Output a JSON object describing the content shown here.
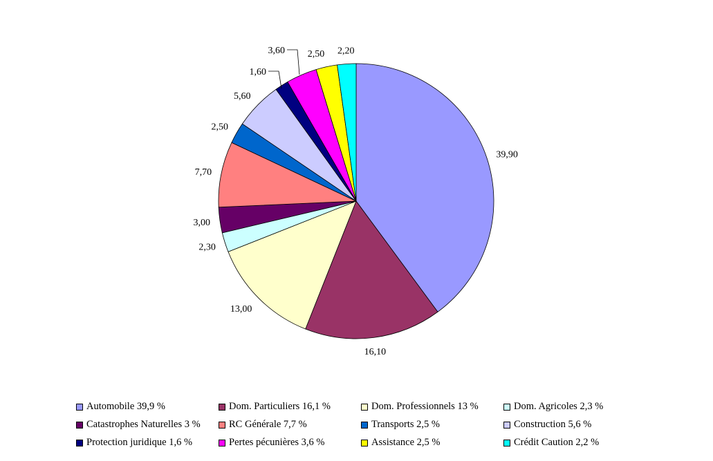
{
  "chart_data": {
    "type": "pie",
    "start_angle": "12 o'clock, clockwise",
    "slices": [
      {
        "label": "Automobile 39,9 %",
        "value": 39.9,
        "data_label": "39,90",
        "color": "#9999FF"
      },
      {
        "label": "Dom. Particuliers 16,1 %",
        "value": 16.1,
        "data_label": "16,10",
        "color": "#993366"
      },
      {
        "label": "Dom. Professionnels 13 %",
        "value": 13.0,
        "data_label": "13,00",
        "color": "#FFFFCC"
      },
      {
        "label": "Dom. Agricoles 2,3 %",
        "value": 2.3,
        "data_label": "2,30",
        "color": "#CCFFFF"
      },
      {
        "label": "Catastrophes Naturelles 3 %",
        "value": 3.0,
        "data_label": "3,00",
        "color": "#660066"
      },
      {
        "label": "RC Générale 7,7 %",
        "value": 7.7,
        "data_label": "7,70",
        "color": "#FF8080"
      },
      {
        "label": "Transports 2,5 %",
        "value": 2.5,
        "data_label": "2,50",
        "color": "#0066CC"
      },
      {
        "label": "Construction 5,6 %",
        "value": 5.6,
        "data_label": "5,60",
        "color": "#CCCCFF"
      },
      {
        "label": "Protection juridique 1,6 %",
        "value": 1.6,
        "data_label": "1,60",
        "color": "#000080"
      },
      {
        "label": "Pertes pécunières 3,6 %",
        "value": 3.6,
        "data_label": "3,60",
        "color": "#FF00FF"
      },
      {
        "label": "Assistance 2,5 %",
        "value": 2.5,
        "data_label": "2,50",
        "color": "#FFFF00"
      },
      {
        "label": "Crédit Caution 2,2 %",
        "value": 2.2,
        "data_label": "2,20",
        "color": "#00FFFF"
      }
    ],
    "legend_placement": "bottom"
  }
}
